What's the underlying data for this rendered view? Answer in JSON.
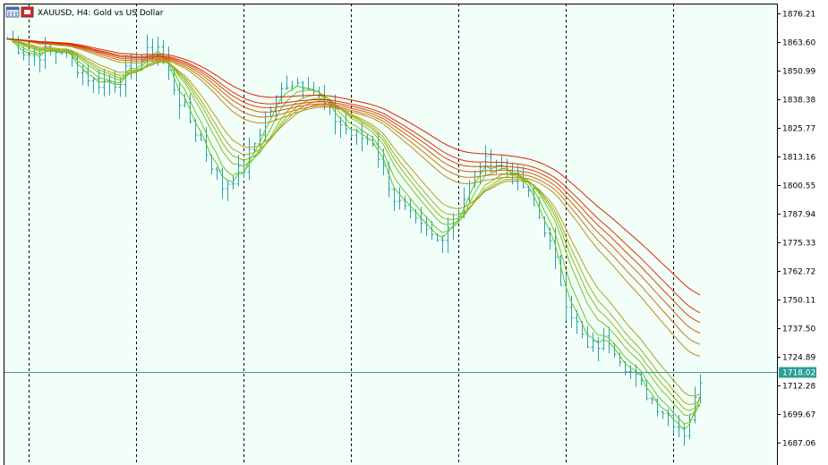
{
  "header": {
    "symbol": "XAUUSD",
    "timeframe": "H4",
    "title": "XAUUSD, H4:  Gold vs US Dollar"
  },
  "colors": {
    "background": "#f2fff8",
    "frame": "#000000",
    "grid_vertical": "#000000",
    "bars": "#2e9fb0",
    "current_price_line": "#3a9c98",
    "current_price_tag": "#2e9f94",
    "ribbon_fast": "#5ac82a",
    "ribbon_slow": "#e02000"
  },
  "chart_data": {
    "type": "line",
    "title": "XAUUSD, H4:  Gold vs US Dollar",
    "xlabel": "",
    "ylabel": "",
    "ylim": [
      1680.2,
      1882.0
    ],
    "y_ticks": [
      "1876.21",
      "1863.60",
      "1850.99",
      "1838.38",
      "1825.77",
      "1813.16",
      "1800.55",
      "1787.94",
      "1775.33",
      "1762.72",
      "1750.11",
      "1737.50",
      "1724.89",
      "1712.28",
      "1699.67",
      "1687.06"
    ],
    "y_tick_values": [
      1876.21,
      1863.6,
      1850.99,
      1838.38,
      1825.77,
      1813.16,
      1800.55,
      1787.94,
      1775.33,
      1762.72,
      1750.11,
      1737.5,
      1724.89,
      1712.28,
      1699.67,
      1687.06
    ],
    "current_price": 1718.02,
    "current_price_label": "1718.02",
    "bar_count": 130,
    "period_separators_at_bar": [
      4,
      24,
      44,
      64,
      84,
      104,
      124
    ],
    "grid": false,
    "legend": "none",
    "price_path_anchors": [
      [
        0,
        1865
      ],
      [
        4,
        1858
      ],
      [
        10,
        1860
      ],
      [
        16,
        1846
      ],
      [
        20,
        1846
      ],
      [
        24,
        1854
      ],
      [
        28,
        1862
      ],
      [
        32,
        1838
      ],
      [
        36,
        1820
      ],
      [
        40,
        1800
      ],
      [
        44,
        1808
      ],
      [
        48,
        1830
      ],
      [
        52,
        1846
      ],
      [
        56,
        1846
      ],
      [
        60,
        1832
      ],
      [
        64,
        1823
      ],
      [
        68,
        1820
      ],
      [
        72,
        1795
      ],
      [
        76,
        1783
      ],
      [
        80,
        1776
      ],
      [
        84,
        1790
      ],
      [
        88,
        1810
      ],
      [
        92,
        1810
      ],
      [
        96,
        1800
      ],
      [
        100,
        1782
      ],
      [
        104,
        1750
      ],
      [
        108,
        1728
      ],
      [
        112,
        1733
      ],
      [
        116,
        1718
      ],
      [
        120,
        1706
      ],
      [
        124,
        1697
      ],
      [
        126,
        1692
      ],
      [
        128,
        1705
      ],
      [
        129,
        1716
      ]
    ],
    "series": [
      {
        "color": "#5ac82a",
        "period": 3
      },
      {
        "color": "#6ac428",
        "period": 5
      },
      {
        "color": "#7cc025",
        "period": 8
      },
      {
        "color": "#8eb822",
        "period": 10
      },
      {
        "color": "#a0ae1f",
        "period": 12
      },
      {
        "color": "#b0a01c",
        "period": 15
      },
      {
        "color": "#c08c18",
        "period": 30
      },
      {
        "color": "#cc7414",
        "period": 35
      },
      {
        "color": "#d65c10",
        "period": 40
      },
      {
        "color": "#dc440a",
        "period": 45
      },
      {
        "color": "#e03006",
        "period": 50
      },
      {
        "color": "#e02000",
        "period": 60
      }
    ]
  }
}
